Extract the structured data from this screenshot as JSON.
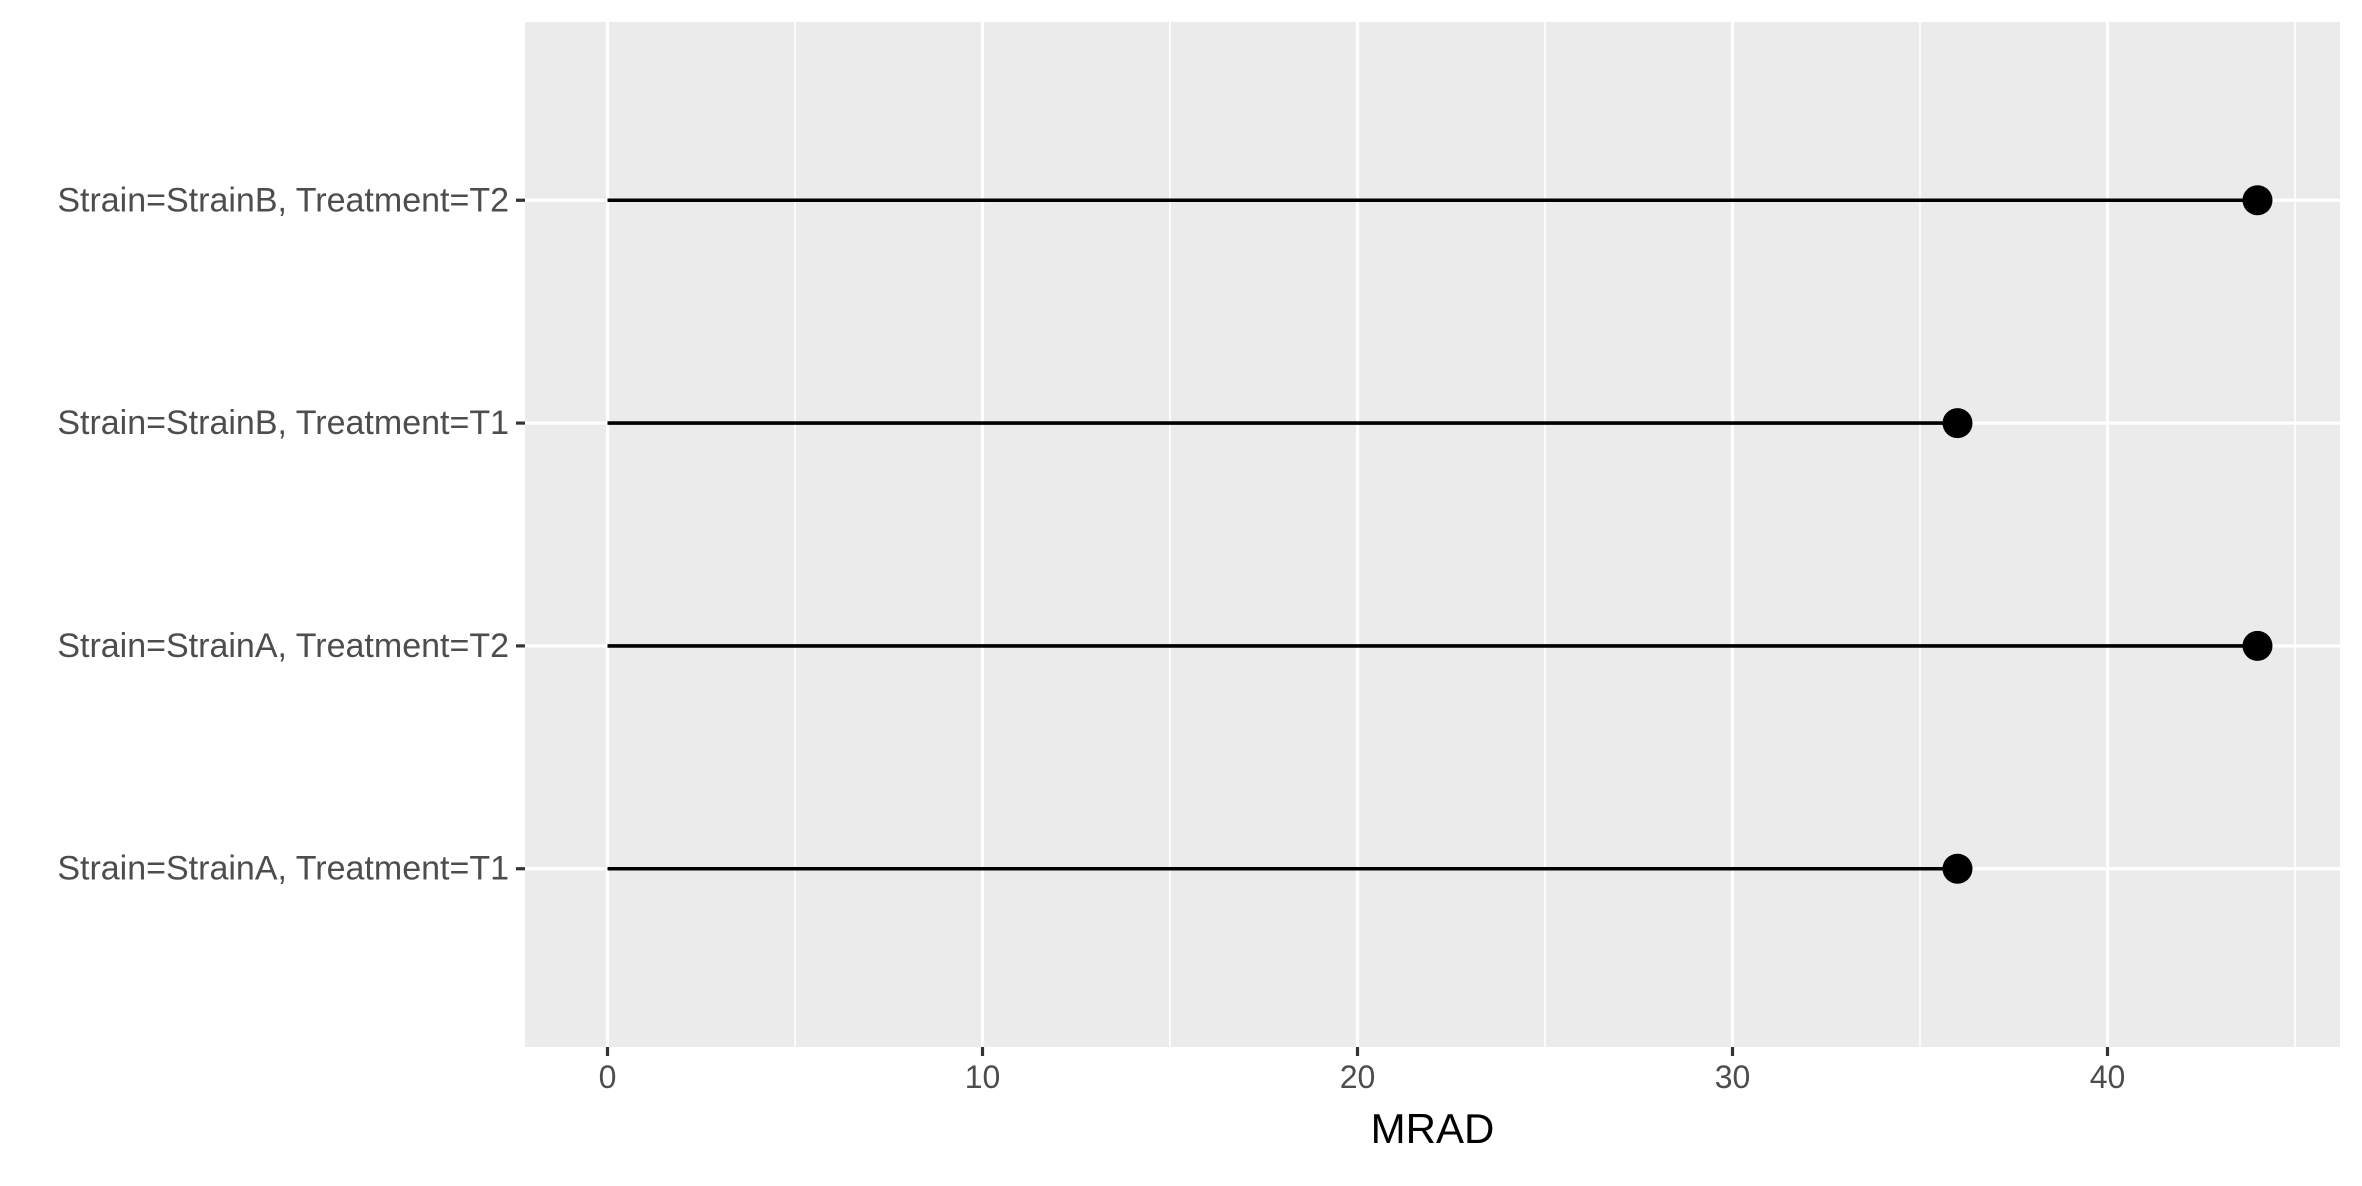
{
  "chart_data": {
    "type": "lollipop",
    "title": "",
    "xlabel": "MRAD",
    "ylabel": "",
    "categories": [
      "Strain=StrainA, Treatment=T1",
      "Strain=StrainA, Treatment=T2",
      "Strain=StrainB, Treatment=T1",
      "Strain=StrainB, Treatment=T2"
    ],
    "values": [
      36,
      44,
      36,
      44
    ],
    "xlim": [
      -2.2,
      46.2
    ],
    "xticks": [
      0,
      10,
      20,
      30,
      40
    ],
    "x_minor_ticks": [
      5,
      15,
      25,
      35,
      45
    ],
    "grid": true,
    "legend": "none",
    "colors": {
      "panel_background": "#EBEBEB",
      "grid_major": "#FFFFFF",
      "grid_minor": "#FFFFFF",
      "mark": "#000000",
      "tick_label": "#4D4D4D",
      "axis_title": "#000000"
    }
  }
}
